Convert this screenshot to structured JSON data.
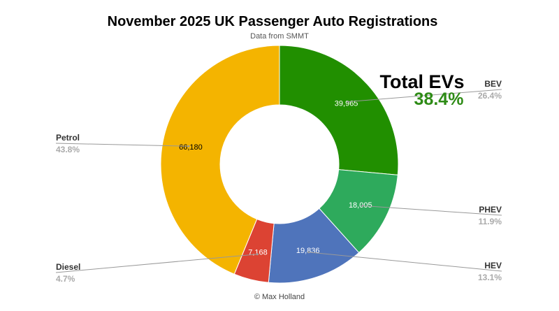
{
  "chart_data": {
    "type": "pie",
    "donut": true,
    "title": "November 2025 UK Passenger Auto Registrations",
    "subtitle": "Data from SMMT",
    "footer": "© Max Holland",
    "annotation": {
      "label": "Total EVs",
      "value": "38.4%",
      "color": "#2e8b16"
    },
    "slices": [
      {
        "name": "BEV",
        "value": 39965,
        "value_label": "39,965",
        "percent": "26.4%",
        "color": "#218f00"
      },
      {
        "name": "PHEV",
        "value": 18005,
        "value_label": "18,005",
        "percent": "11.9%",
        "color": "#2eaa5c"
      },
      {
        "name": "HEV",
        "value": 19836,
        "value_label": "19,836",
        "percent": "13.1%",
        "color": "#4f74bb"
      },
      {
        "name": "Diesel",
        "value": 7168,
        "value_label": "7,168",
        "percent": "4.7%",
        "color": "#dc4333"
      },
      {
        "name": "Petrol",
        "value": 66180,
        "value_label": "66,180",
        "percent": "43.8%",
        "color": "#f4b400"
      }
    ]
  }
}
